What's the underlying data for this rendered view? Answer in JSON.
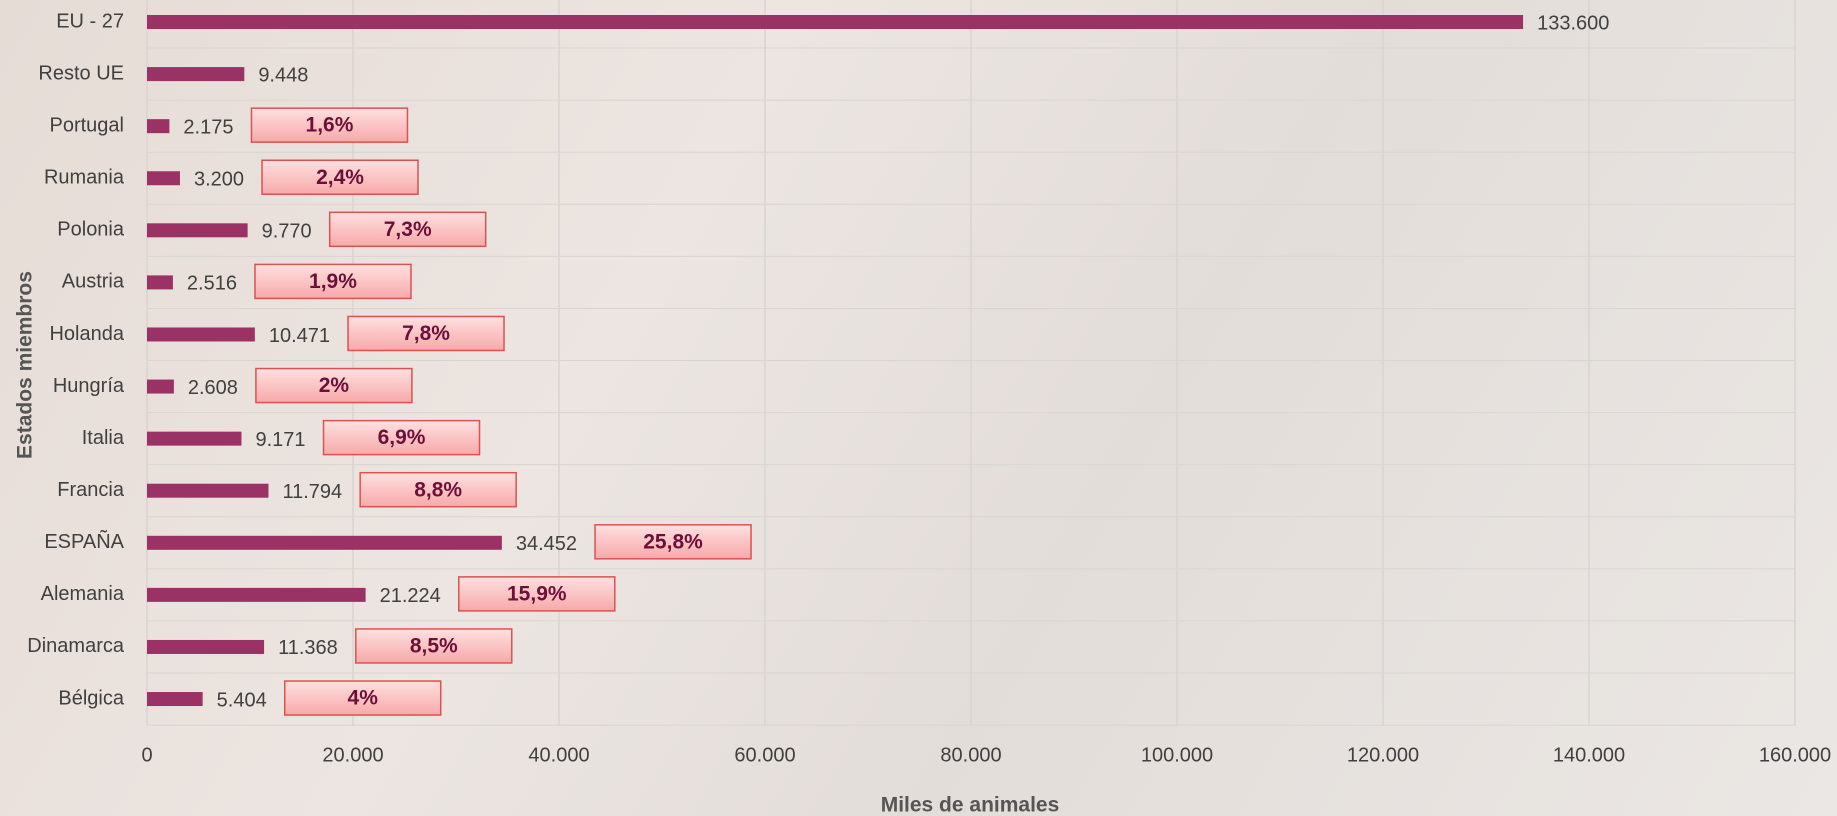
{
  "chart_data": {
    "type": "hbar",
    "x_label": "Miles de animales",
    "y_label": "Estados miembros",
    "categories": [
      "EU - 27",
      "Resto UE",
      "Portugal",
      "Rumania",
      "Polonia",
      "Austria",
      "Holanda",
      "Hungría",
      "Italia",
      "Francia",
      "ESPAÑA",
      "Alemania",
      "Dinamarca",
      "Bélgica"
    ],
    "values": [
      133600,
      9448,
      2175,
      3200,
      9770,
      2516,
      10471,
      2608,
      9171,
      11794,
      34452,
      21224,
      11368,
      5404
    ],
    "value_labels": [
      "133.600",
      "9.448",
      "2.175",
      "3.200",
      "9.770",
      "2.516",
      "10.471",
      "2.608",
      "9.171",
      "11.794",
      "34.452",
      "21.224",
      "11.368",
      "5.404"
    ],
    "share_labels": [
      null,
      null,
      "1,6%",
      "2,4%",
      "7,3%",
      "1,9%",
      "7,8%",
      "2%",
      "6,9%",
      "8,8%",
      "25,8%",
      "15,9%",
      "8,5%",
      "4%"
    ],
    "color": "#9b3265",
    "xlim": [
      0,
      160000
    ],
    "xticks": [
      0,
      {
        "value": 20000,
        "label": "20.000"
      },
      {
        "value": 40000,
        "label": "40.000"
      },
      {
        "value": 60000,
        "label": "60.000"
      },
      {
        "value": 80000,
        "label": "80.000"
      },
      {
        "value": 100000,
        "label": "100.000"
      },
      {
        "value": 120000,
        "label": "120.000"
      },
      {
        "value": 140000,
        "label": "140.000"
      },
      {
        "value": 160000,
        "label": "160.000"
      }
    ],
    "grid": true
  }
}
